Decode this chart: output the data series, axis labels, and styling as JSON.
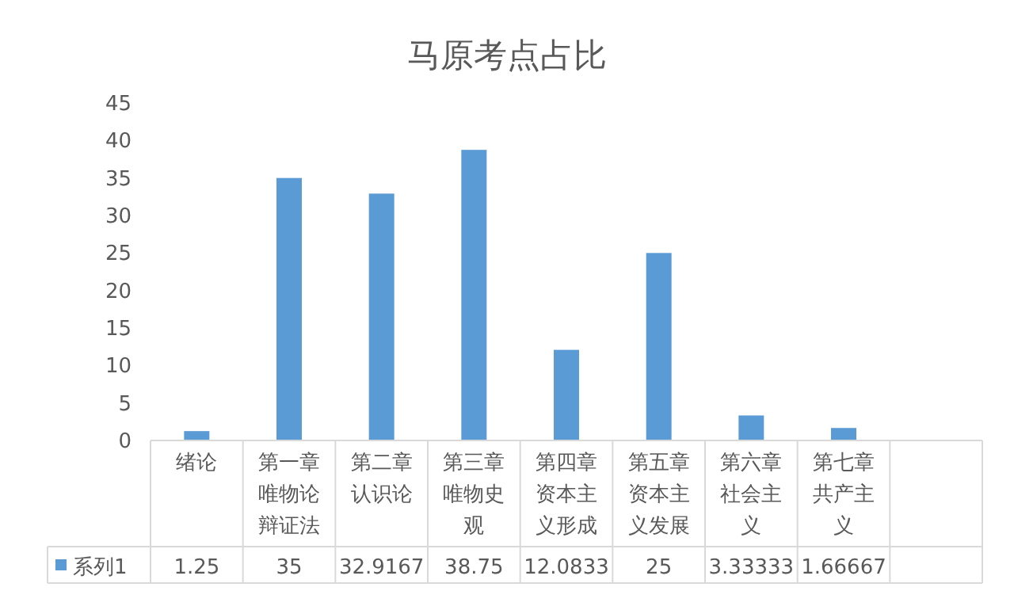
{
  "chart_data": {
    "type": "bar",
    "title": "马原考点占比",
    "categories": [
      "绪论",
      "第一章唯物论辩证法",
      "第二章认识论",
      "第三章唯物史观",
      "第四章资本主义形成",
      "第五章资本主义发展",
      "第六章社会主义",
      "第七章共产主义",
      null
    ],
    "series": [
      {
        "name": "系列1",
        "color": "#5b9bd5",
        "values": [
          1.25,
          35,
          32.9167,
          38.75,
          12.0833,
          25,
          3.33333,
          1.66667,
          null
        ]
      }
    ],
    "ylim": [
      0,
      45
    ],
    "yticks": [
      0,
      5,
      10,
      15,
      20,
      25,
      30,
      35,
      40,
      45
    ],
    "data_labels": true,
    "legend": "bottom"
  }
}
